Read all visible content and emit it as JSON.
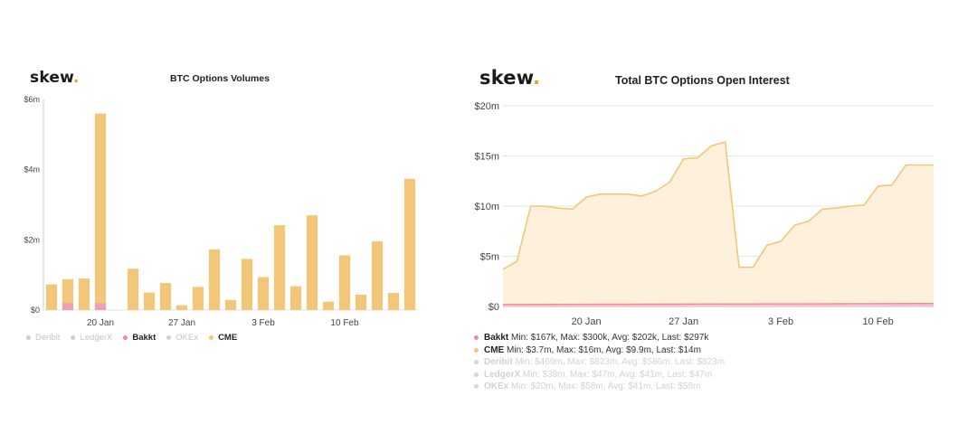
{
  "left": {
    "brand": {
      "text": "skew",
      "dot": "."
    },
    "chart_title": "BTC Options Volumes",
    "legend": [
      {
        "label": "Deribit",
        "color": "#cfcfcf",
        "active": false
      },
      {
        "label": "LedgerX",
        "color": "#cfcfcf",
        "active": false
      },
      {
        "label": "Bakkt",
        "color": "#f08a9a",
        "active": true
      },
      {
        "label": "OKEx",
        "color": "#cfcfcf",
        "active": false
      },
      {
        "label": "CME",
        "color": "#f2c77a",
        "active": true
      }
    ]
  },
  "right": {
    "brand": {
      "text": "skew",
      "dot": "."
    },
    "chart_title": "Total BTC Options Open Interest",
    "legend": [
      {
        "name": "Bakkt",
        "stats": "Min: $167k, Max: $300k, Avg: $202k, Last: $297k",
        "color": "#f08a9a",
        "active": true
      },
      {
        "name": "CME",
        "stats": "Min: $3.7m, Max: $16m, Avg: $9.9m, Last: $14m",
        "color": "#f2c77a",
        "active": true
      },
      {
        "name": "Deribit",
        "stats": "Min: $469m, Max: $823m, Avg: $586m, Last: $823m",
        "color": "#d6d6d6",
        "active": false
      },
      {
        "name": "LedgerX",
        "stats": "Min: $38m, Max: $47m, Avg: $41m, Last: $47m",
        "color": "#d6d6d6",
        "active": false
      },
      {
        "name": "OKEx",
        "stats": "Min: $20m, Max: $58m, Avg: $41m, Last: $58m",
        "color": "#d6d6d6",
        "active": false
      }
    ]
  },
  "chart_data": [
    {
      "type": "bar",
      "title": "BTC Options Volumes",
      "ylim": [
        0,
        6000000
      ],
      "yticks": [
        "$0",
        "$2m",
        "$4m",
        "$6m"
      ],
      "xticks": [
        "20 Jan",
        "27 Jan",
        "3 Feb",
        "10 Feb"
      ],
      "xtick_positions": [
        3.5,
        8.5,
        13.5,
        18.5
      ],
      "grid": false,
      "legend_position": "bottom-left",
      "colors": {
        "CME": "#f2c77a",
        "Bakkt": "#f0a0ae"
      },
      "series": [
        {
          "name": "CME",
          "values": [
            730000,
            880000,
            900000,
            5600000,
            0,
            1180000,
            500000,
            770000,
            140000,
            660000,
            1730000,
            290000,
            1460000,
            940000,
            2420000,
            680000,
            2700000,
            240000,
            1560000,
            440000,
            1960000,
            490000,
            3740000
          ]
        },
        {
          "name": "Bakkt",
          "values": [
            0,
            200000,
            0,
            200000,
            0,
            0,
            0,
            0,
            0,
            0,
            0,
            0,
            0,
            0,
            0,
            0,
            0,
            0,
            0,
            0,
            0,
            0,
            0
          ]
        }
      ]
    },
    {
      "type": "area",
      "title": "Total BTC Options Open Interest",
      "ylim": [
        0,
        20000000
      ],
      "yticks": [
        "$0",
        "$5m",
        "$10m",
        "$15m",
        "$20m"
      ],
      "xticks": [
        "20 Jan",
        "27 Jan",
        "3 Feb",
        "10 Feb"
      ],
      "xtick_positions": [
        4,
        11,
        18,
        25
      ],
      "xlim": [
        -2,
        29
      ],
      "grid": true,
      "legend_position": "bottom-left",
      "series": [
        {
          "name": "CME",
          "color": "#f2c77a",
          "x": [
            -2,
            -1,
            0,
            1,
            2,
            3,
            4,
            5,
            6,
            7,
            8,
            9,
            10,
            11,
            12,
            13,
            14,
            15,
            16,
            17,
            18,
            19,
            20,
            21,
            22,
            23,
            24,
            25,
            26,
            27,
            28,
            29
          ],
          "values": [
            3700000,
            4500000,
            10000000,
            10000000,
            9800000,
            9700000,
            10900000,
            11200000,
            11200000,
            11200000,
            11000000,
            11500000,
            12400000,
            14700000,
            14800000,
            16000000,
            16400000,
            3900000,
            3900000,
            6100000,
            6500000,
            8100000,
            8500000,
            9700000,
            9800000,
            10000000,
            10100000,
            12000000,
            12100000,
            14100000,
            14100000,
            14100000
          ]
        },
        {
          "name": "Bakkt",
          "color": "#f08a9a",
          "x": [
            -2,
            29
          ],
          "values": [
            200000,
            297000
          ]
        }
      ]
    }
  ]
}
